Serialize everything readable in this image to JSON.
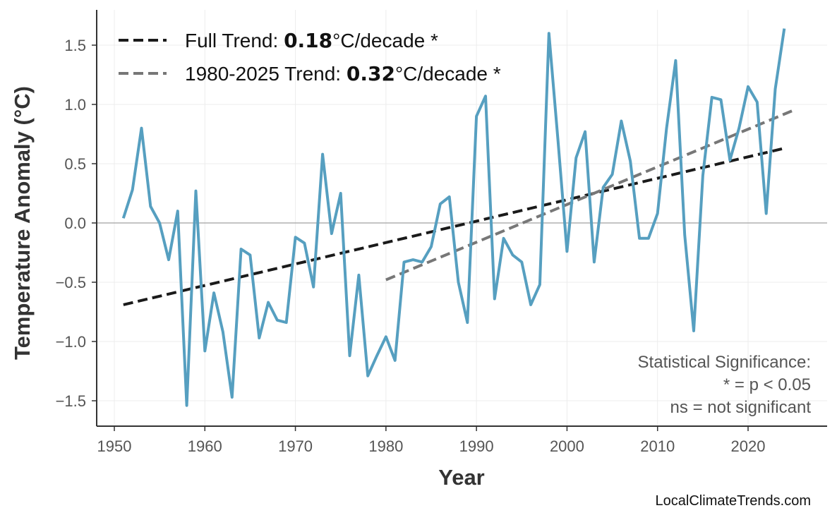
{
  "chart_data": {
    "type": "line",
    "title": "",
    "xlabel": "Year",
    "ylabel": "Temperature Anomaly (°C)",
    "xlim": [
      1948,
      2028.7
    ],
    "ylim": [
      -1.71,
      1.8
    ],
    "grid": true,
    "legend_placement": "top-left",
    "x_ticks": [
      "1950",
      "1960",
      "1970",
      "1980",
      "1990",
      "2000",
      "2010",
      "2020"
    ],
    "y_ticks": [
      "1.5",
      "1.0",
      "0.5",
      "0.0",
      "−0.5",
      "−1.0",
      "−1.5"
    ],
    "series": [
      {
        "color": "#569fc0",
        "x": [
          1951,
          1952,
          1953,
          1954,
          1955,
          1956,
          1957,
          1958,
          1959,
          1960,
          1961,
          1962,
          1963,
          1964,
          1965,
          1966,
          1967,
          1968,
          1969,
          1970,
          1971,
          1972,
          1973,
          1974,
          1975,
          1976,
          1977,
          1978,
          1979,
          1980,
          1981,
          1982,
          1983,
          1984,
          1985,
          1986,
          1987,
          1988,
          1989,
          1990,
          1991,
          1992,
          1993,
          1994,
          1995,
          1996,
          1997,
          1998,
          1999,
          2000,
          2001,
          2002,
          2003,
          2004,
          2005,
          2006,
          2007,
          2008,
          2009,
          2010,
          2011,
          2012,
          2013,
          2014,
          2015,
          2016,
          2017,
          2018,
          2019,
          2020,
          2021,
          2022,
          2023,
          2024
        ],
        "values": [
          0.04,
          0.28,
          0.8,
          0.14,
          0.0,
          -0.31,
          0.1,
          -1.54,
          0.27,
          -1.08,
          -0.59,
          -0.92,
          -1.47,
          -0.22,
          -0.27,
          -0.97,
          -0.67,
          -0.82,
          -0.84,
          -0.12,
          -0.17,
          -0.54,
          0.58,
          -0.09,
          0.25,
          -1.12,
          -0.44,
          -1.29,
          -1.12,
          -0.96,
          -1.16,
          -0.33,
          -0.31,
          -0.33,
          -0.2,
          0.16,
          0.22,
          -0.5,
          -0.84,
          0.9,
          1.07,
          -0.64,
          -0.13,
          -0.27,
          -0.33,
          -0.69,
          -0.52,
          1.6,
          0.7,
          -0.24,
          0.55,
          0.77,
          -0.33,
          0.3,
          0.41,
          0.86,
          0.52,
          -0.13,
          -0.13,
          0.08,
          0.8,
          1.37,
          -0.1,
          -0.91,
          0.4,
          1.06,
          1.04,
          0.53,
          0.8,
          1.15,
          1.02,
          0.08,
          1.13,
          1.64
        ]
      }
    ],
    "trends": [
      {
        "label_prefix": "Full Trend: ",
        "value": "0.18",
        "label_suffix": "°C/decade *",
        "color": "#1a1a1a",
        "x": [
          1951,
          2024
        ],
        "y": [
          -0.69,
          0.63
        ]
      },
      {
        "label_prefix": "1980-2025 Trend: ",
        "value": "0.32",
        "label_suffix": "°C/decade *",
        "color": "#777777",
        "x": [
          1980,
          2025
        ],
        "y": [
          -0.48,
          0.95
        ]
      }
    ],
    "annotation": [
      "Statistical Significance:",
      "* = p < 0.05",
      "ns = not significant"
    ],
    "credit": "LocalClimateTrends.com"
  }
}
